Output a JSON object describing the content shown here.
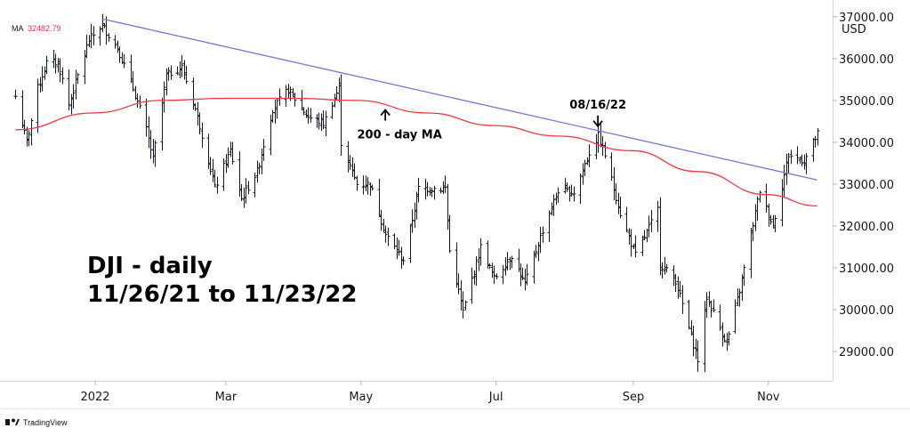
{
  "chart_data": {
    "type": "line",
    "instrument_title": "DJI - daily",
    "date_range_label": "11/26/21 to 11/23/22",
    "currency": "USD",
    "ma_indicator": {
      "label": "MA",
      "value": "32482.79",
      "color": "#f23645"
    },
    "trendline_color": "#7b74d6",
    "bar_color": "#131722",
    "ylim": [
      28300,
      37400
    ],
    "y_ticks": [
      "37000.00",
      "36000.00",
      "35000.00",
      "34000.00",
      "33000.00",
      "32000.00",
      "31000.00",
      "30000.00",
      "29000.00"
    ],
    "x_ticks": [
      "2022",
      "Mar",
      "May",
      "Jul",
      "Sep",
      "Nov"
    ],
    "x_tick_dates": [
      "2022-01-01",
      "2022-03-01",
      "2022-05-01",
      "2022-07-01",
      "2022-09-01",
      "2022-11-01"
    ],
    "x_range": [
      "2021-11-19",
      "2022-11-30"
    ],
    "price_path": [
      [
        "2021-11-26",
        35100
      ],
      [
        "2021-12-01",
        34000
      ],
      [
        "2021-12-06",
        35300
      ],
      [
        "2021-12-10",
        35900
      ],
      [
        "2021-12-15",
        35900
      ],
      [
        "2021-12-20",
        34900
      ],
      [
        "2021-12-29",
        36450
      ],
      [
        "2022-01-04",
        36800
      ],
      [
        "2022-01-11",
        36250
      ],
      [
        "2022-01-18",
        35300
      ],
      [
        "2022-01-24",
        34300
      ],
      [
        "2022-01-27",
        33600
      ],
      [
        "2022-02-02",
        35600
      ],
      [
        "2022-02-09",
        35800
      ],
      [
        "2022-02-15",
        34800
      ],
      [
        "2022-02-23",
        33150
      ],
      [
        "2022-02-24",
        32900
      ],
      [
        "2022-03-03",
        33800
      ],
      [
        "2022-03-08",
        32650
      ],
      [
        "2022-03-15",
        33300
      ],
      [
        "2022-03-22",
        34800
      ],
      [
        "2022-03-29",
        35250
      ],
      [
        "2022-04-07",
        34600
      ],
      [
        "2022-04-14",
        34450
      ],
      [
        "2022-04-21",
        35300
      ],
      [
        "2022-04-22",
        34000
      ],
      [
        "2022-04-29",
        33000
      ],
      [
        "2022-05-05",
        33000
      ],
      [
        "2022-05-12",
        31800
      ],
      [
        "2022-05-19",
        31250
      ],
      [
        "2022-05-20",
        31200
      ],
      [
        "2022-05-27",
        32900
      ],
      [
        "2022-06-03",
        32900
      ],
      [
        "2022-06-08",
        32900
      ],
      [
        "2022-06-10",
        31400
      ],
      [
        "2022-06-16",
        29950
      ],
      [
        "2022-06-24",
        31500
      ],
      [
        "2022-06-30",
        30750
      ],
      [
        "2022-07-08",
        31300
      ],
      [
        "2022-07-14",
        30600
      ],
      [
        "2022-07-22",
        31900
      ],
      [
        "2022-07-29",
        32850
      ],
      [
        "2022-08-05",
        32800
      ],
      [
        "2022-08-12",
        33750
      ],
      [
        "2022-08-16",
        34150
      ],
      [
        "2022-08-19",
        33700
      ],
      [
        "2022-08-26",
        32300
      ],
      [
        "2022-09-02",
        31300
      ],
      [
        "2022-09-12",
        32400
      ],
      [
        "2022-09-13",
        31100
      ],
      [
        "2022-09-20",
        30700
      ],
      [
        "2022-09-30",
        28800
      ],
      [
        "2022-10-04",
        30300
      ],
      [
        "2022-10-13",
        29200
      ],
      [
        "2022-10-19",
        30450
      ],
      [
        "2022-10-28",
        32850
      ],
      [
        "2022-11-03",
        32000
      ],
      [
        "2022-11-10",
        33700
      ],
      [
        "2022-11-17",
        33550
      ],
      [
        "2022-11-23",
        34200
      ]
    ],
    "ma_path": [
      [
        "2021-11-26",
        34300
      ],
      [
        "2021-12-31",
        34700
      ],
      [
        "2022-01-31",
        35000
      ],
      [
        "2022-03-01",
        35050
      ],
      [
        "2022-04-01",
        35050
      ],
      [
        "2022-04-29",
        35000
      ],
      [
        "2022-05-31",
        34700
      ],
      [
        "2022-06-30",
        34400
      ],
      [
        "2022-07-29",
        34150
      ],
      [
        "2022-08-31",
        33800
      ],
      [
        "2022-09-30",
        33300
      ],
      [
        "2022-10-31",
        32750
      ],
      [
        "2022-11-23",
        32480
      ]
    ],
    "trendline": [
      [
        "2022-01-04",
        36950
      ],
      [
        "2022-11-23",
        33100
      ]
    ],
    "annotations": [
      {
        "id": "ma",
        "text": "200 - day MA",
        "date": "2022-05-12",
        "value": 34900,
        "direction": "up"
      },
      {
        "id": "peak",
        "text": "08/16/22",
        "date": "2022-08-16",
        "value": 34300,
        "direction": "down"
      }
    ]
  },
  "branding": {
    "name": "TradingView"
  }
}
